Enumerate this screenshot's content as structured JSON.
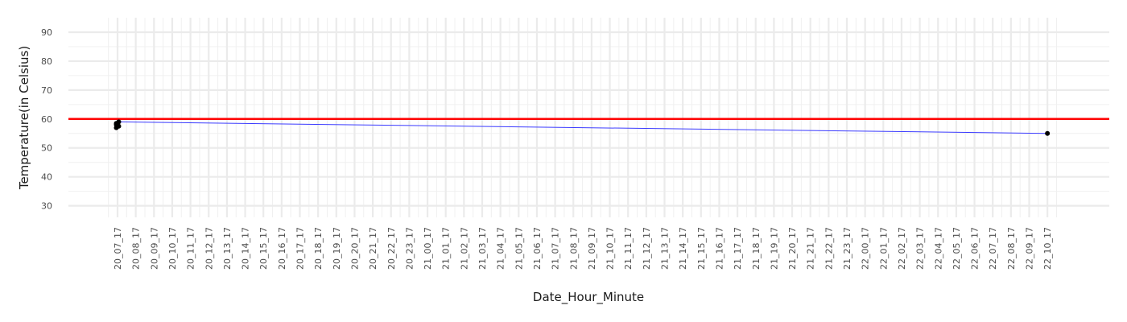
{
  "chart_data": {
    "type": "scatter",
    "title": "",
    "xlabel": "Date_Hour_Minute",
    "ylabel": "Temperature(in Celsius)",
    "ylim": [
      26,
      95
    ],
    "y_ticks": [
      30,
      40,
      50,
      60,
      70,
      80,
      90
    ],
    "grid": true,
    "categories": [
      "20_07_17",
      "20_08_17",
      "20_09_17",
      "20_10_17",
      "20_11_17",
      "20_12_17",
      "20_13_17",
      "20_14_17",
      "20_15_17",
      "20_16_17",
      "20_17_17",
      "20_18_17",
      "20_19_17",
      "20_20_17",
      "20_21_17",
      "20_22_17",
      "20_23_17",
      "21_00_17",
      "21_01_17",
      "21_02_17",
      "21_03_17",
      "21_04_17",
      "21_05_17",
      "21_06_17",
      "21_07_17",
      "21_08_17",
      "21_09_17",
      "21_10_17",
      "21_11_17",
      "21_12_17",
      "21_13_17",
      "21_14_17",
      "21_15_17",
      "21_16_17",
      "21_17_17",
      "21_18_17",
      "21_19_17",
      "21_20_17",
      "21_21_17",
      "21_22_17",
      "21_23_17",
      "22_00_17",
      "22_01_17",
      "22_02_17",
      "22_03_17",
      "22_04_17",
      "22_05_17",
      "22_06_17",
      "22_07_17",
      "22_08_17",
      "22_09_17",
      "22_10_17"
    ],
    "points": [
      {
        "x": "20_07_17",
        "y": 58
      },
      {
        "x": "20_07_17",
        "y": 59
      },
      {
        "x": "20_07_17",
        "y": 57
      },
      {
        "x": "20_07_17",
        "y": 57.5
      },
      {
        "x": "20_07_17",
        "y": 58.5
      },
      {
        "x": "22_10_17",
        "y": 55
      }
    ],
    "trend_line": {
      "from": {
        "x": "20_07_17",
        "y": 59
      },
      "to": {
        "x": "22_10_17",
        "y": 55
      },
      "color": "#3b3bff"
    },
    "reference_line": {
      "y": 60,
      "color": "#ff0000"
    },
    "point_color": "#000000"
  }
}
